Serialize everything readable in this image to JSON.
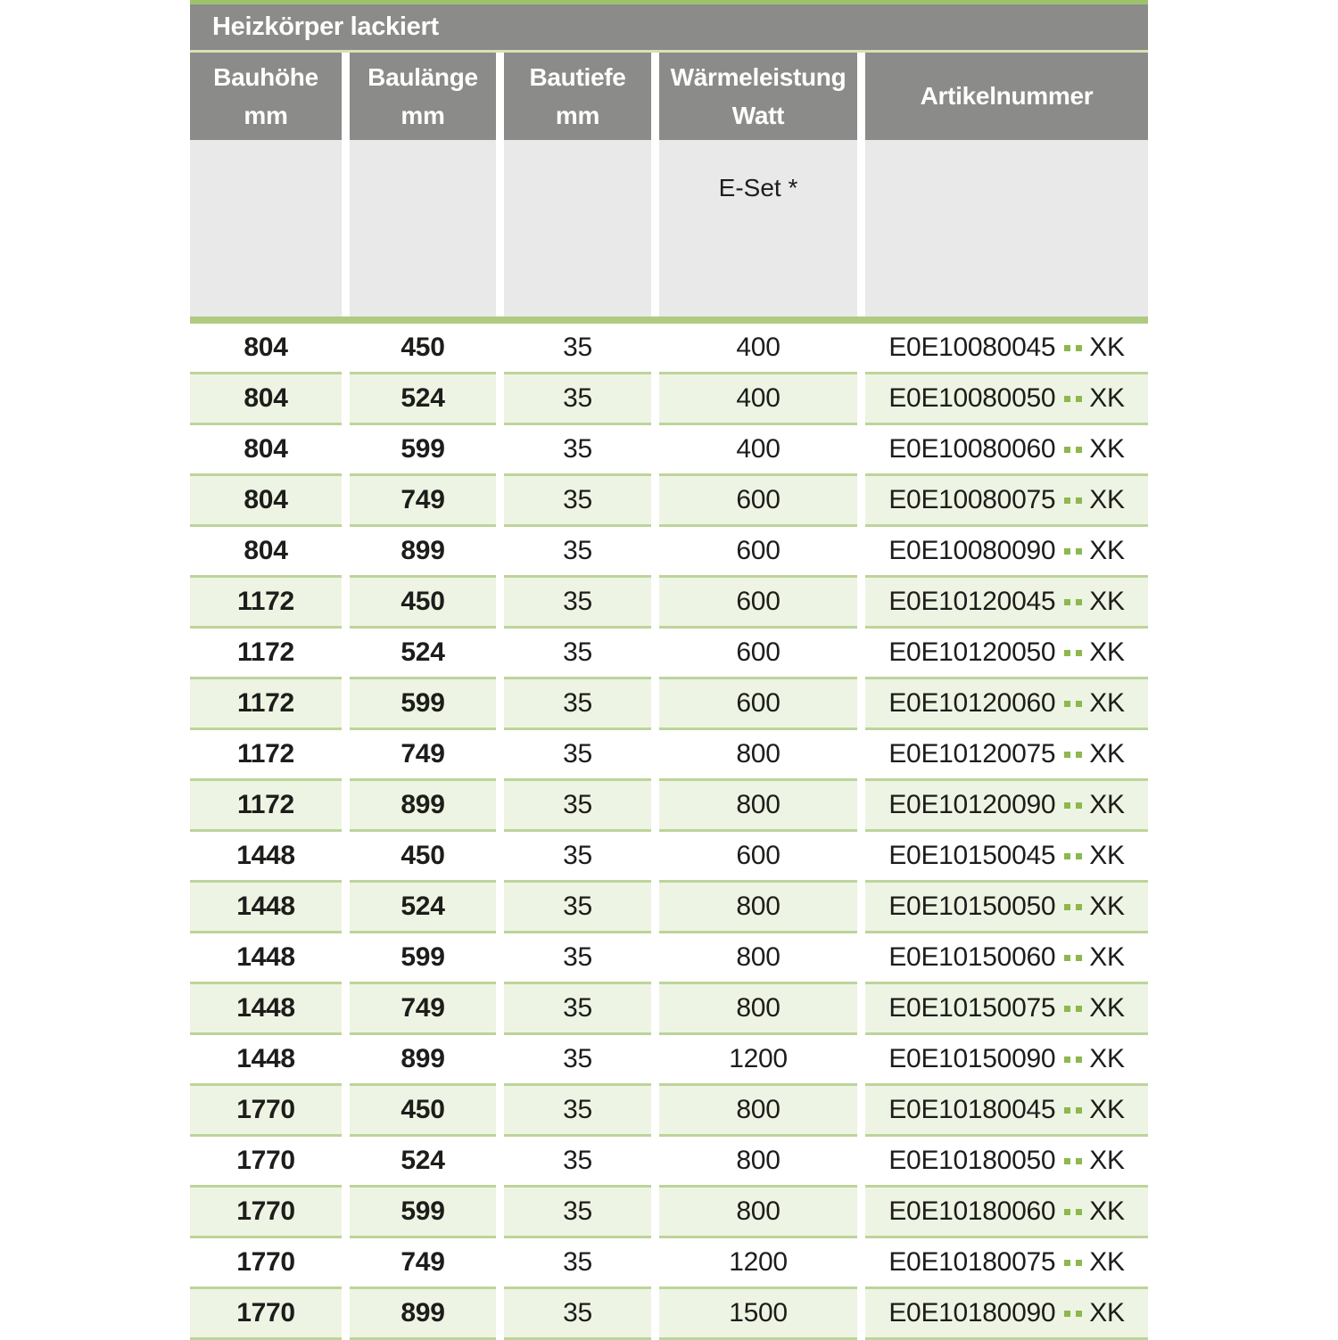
{
  "banner": {
    "title": "Heizkörper lackiert"
  },
  "columns": [
    {
      "id": "bauhoehe",
      "label_line1": "Bauhöhe",
      "label_line2": "mm"
    },
    {
      "id": "baulaenge",
      "label_line1": "Baulänge",
      "label_line2": "mm"
    },
    {
      "id": "bautiefe",
      "label_line1": "Bautiefe",
      "label_line2": "mm"
    },
    {
      "id": "waermeleistung",
      "label_line1": "Wärmeleistung",
      "label_line2": "Watt"
    },
    {
      "id": "artikelnummer",
      "label_line1": "Artikelnummer",
      "label_line2": ""
    }
  ],
  "subheader": {
    "eset_label": "E-Set *"
  },
  "colors": {
    "header_gray": "#8b8b89",
    "light_gray": "#e9e9e9",
    "accent_green": "#9ec26b",
    "bar_green": "#aecb80",
    "separator_green": "#bdd49a",
    "pale_line": "#d6e2b3",
    "row_tint": "#eef4e3",
    "dot_green": "#8cb84e",
    "text_dark": "#1d1d1b"
  },
  "rows": [
    {
      "bauhoehe": "804",
      "baulaenge": "450",
      "bautiefe": "35",
      "watt": "400",
      "artikel_prefix": "E0E10080045",
      "artikel_suffix": "XK"
    },
    {
      "bauhoehe": "804",
      "baulaenge": "524",
      "bautiefe": "35",
      "watt": "400",
      "artikel_prefix": "E0E10080050",
      "artikel_suffix": "XK"
    },
    {
      "bauhoehe": "804",
      "baulaenge": "599",
      "bautiefe": "35",
      "watt": "400",
      "artikel_prefix": "E0E10080060",
      "artikel_suffix": "XK"
    },
    {
      "bauhoehe": "804",
      "baulaenge": "749",
      "bautiefe": "35",
      "watt": "600",
      "artikel_prefix": "E0E10080075",
      "artikel_suffix": "XK"
    },
    {
      "bauhoehe": "804",
      "baulaenge": "899",
      "bautiefe": "35",
      "watt": "600",
      "artikel_prefix": "E0E10080090",
      "artikel_suffix": "XK"
    },
    {
      "bauhoehe": "1172",
      "baulaenge": "450",
      "bautiefe": "35",
      "watt": "600",
      "artikel_prefix": "E0E10120045",
      "artikel_suffix": "XK"
    },
    {
      "bauhoehe": "1172",
      "baulaenge": "524",
      "bautiefe": "35",
      "watt": "600",
      "artikel_prefix": "E0E10120050",
      "artikel_suffix": "XK"
    },
    {
      "bauhoehe": "1172",
      "baulaenge": "599",
      "bautiefe": "35",
      "watt": "600",
      "artikel_prefix": "E0E10120060",
      "artikel_suffix": "XK"
    },
    {
      "bauhoehe": "1172",
      "baulaenge": "749",
      "bautiefe": "35",
      "watt": "800",
      "artikel_prefix": "E0E10120075",
      "artikel_suffix": "XK"
    },
    {
      "bauhoehe": "1172",
      "baulaenge": "899",
      "bautiefe": "35",
      "watt": "800",
      "artikel_prefix": "E0E10120090",
      "artikel_suffix": "XK"
    },
    {
      "bauhoehe": "1448",
      "baulaenge": "450",
      "bautiefe": "35",
      "watt": "600",
      "artikel_prefix": "E0E10150045",
      "artikel_suffix": "XK"
    },
    {
      "bauhoehe": "1448",
      "baulaenge": "524",
      "bautiefe": "35",
      "watt": "800",
      "artikel_prefix": "E0E10150050",
      "artikel_suffix": "XK"
    },
    {
      "bauhoehe": "1448",
      "baulaenge": "599",
      "bautiefe": "35",
      "watt": "800",
      "artikel_prefix": "E0E10150060",
      "artikel_suffix": "XK"
    },
    {
      "bauhoehe": "1448",
      "baulaenge": "749",
      "bautiefe": "35",
      "watt": "800",
      "artikel_prefix": "E0E10150075",
      "artikel_suffix": "XK"
    },
    {
      "bauhoehe": "1448",
      "baulaenge": "899",
      "bautiefe": "35",
      "watt": "1200",
      "artikel_prefix": "E0E10150090",
      "artikel_suffix": "XK"
    },
    {
      "bauhoehe": "1770",
      "baulaenge": "450",
      "bautiefe": "35",
      "watt": "800",
      "artikel_prefix": "E0E10180045",
      "artikel_suffix": "XK"
    },
    {
      "bauhoehe": "1770",
      "baulaenge": "524",
      "bautiefe": "35",
      "watt": "800",
      "artikel_prefix": "E0E10180050",
      "artikel_suffix": "XK"
    },
    {
      "bauhoehe": "1770",
      "baulaenge": "599",
      "bautiefe": "35",
      "watt": "800",
      "artikel_prefix": "E0E10180060",
      "artikel_suffix": "XK"
    },
    {
      "bauhoehe": "1770",
      "baulaenge": "749",
      "bautiefe": "35",
      "watt": "1200",
      "artikel_prefix": "E0E10180075",
      "artikel_suffix": "XK"
    },
    {
      "bauhoehe": "1770",
      "baulaenge": "899",
      "bautiefe": "35",
      "watt": "1500",
      "artikel_prefix": "E0E10180090",
      "artikel_suffix": "XK"
    }
  ]
}
